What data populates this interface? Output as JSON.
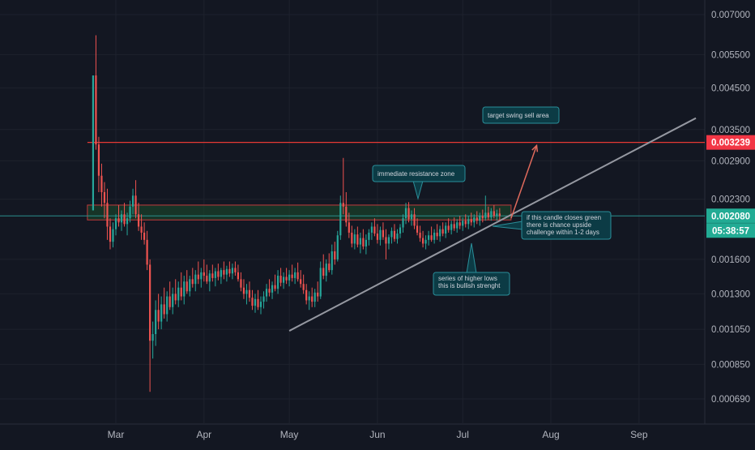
{
  "colors": {
    "background": "#131722",
    "grid": "#1e222d",
    "axis_text": "#b2b5be",
    "candle_up": "#26a69a",
    "candle_down": "#ef5350",
    "resistance_line": "#e53935",
    "resistance_tag_bg": "#f23645",
    "price_line": "#2a8f8c",
    "price_tag_bg": "#22ab94",
    "trendline": "#9598a1",
    "arrow": "#e06a5c",
    "callout_bg": "#0c3b45",
    "callout_border": "#2a8f9a",
    "zone_fill": "#1b4d2b",
    "zone_border": "#c23b3b"
  },
  "chart_data": {
    "type": "candlestick",
    "title": "",
    "y_scale": "log",
    "ylim": [
      0.00062,
      0.0076
    ],
    "y_ticks": [
      "0.007000",
      "0.005500",
      "0.004500",
      "0.003500",
      "0.002900",
      "0.002300",
      "0.001600",
      "0.001300",
      "0.001050",
      "0.000850",
      "0.000690"
    ],
    "x_ticks": [
      "Mar",
      "Apr",
      "May",
      "Jun",
      "Jul",
      "Aug",
      "Sep"
    ],
    "current_price": "0.002080",
    "countdown": "05:38:57",
    "resistance_level": "0.003239",
    "resistance_zone": [
      0.00203,
      0.00222
    ],
    "annotations": [
      {
        "id": "target",
        "lines": [
          "target swing sell area"
        ]
      },
      {
        "id": "resistance",
        "lines": [
          "immediate resistance zone"
        ]
      },
      {
        "id": "candle",
        "lines": [
          "if this candle closes green",
          "there is chance upside",
          "challenge within 1-2 days"
        ]
      },
      {
        "id": "lows",
        "lines": [
          "series of higher lows",
          "this is bullish strenght"
        ]
      }
    ],
    "trendline": {
      "from": [
        "2021-05-01",
        0.00104
      ],
      "to": [
        "2021-09-21",
        0.00375
      ]
    },
    "target_arrow": {
      "from": [
        "2021-07-18",
        0.00205
      ],
      "to": [
        "2021-07-27",
        0.00318
      ]
    },
    "candles": [
      [
        "2021-02-21",
        0.00215,
        0.00485,
        0.00215,
        0.00485
      ],
      [
        "2021-02-22",
        0.00485,
        0.00618,
        0.0031,
        0.0032
      ],
      [
        "2021-02-23",
        0.0032,
        0.00335,
        0.0024,
        0.00265
      ],
      [
        "2021-02-24",
        0.00265,
        0.00285,
        0.0022,
        0.0024
      ],
      [
        "2021-02-25",
        0.0024,
        0.00255,
        0.00205,
        0.00225
      ],
      [
        "2021-02-26",
        0.00225,
        0.00245,
        0.0018,
        0.00195
      ],
      [
        "2021-02-27",
        0.00195,
        0.00205,
        0.0017,
        0.00178
      ],
      [
        "2021-02-28",
        0.00178,
        0.002,
        0.00172,
        0.00192
      ],
      [
        "2021-03-01",
        0.00192,
        0.0021,
        0.00185,
        0.00205
      ],
      [
        "2021-03-02",
        0.00205,
        0.00222,
        0.00195,
        0.002
      ],
      [
        "2021-03-03",
        0.002,
        0.00215,
        0.0019,
        0.0021
      ],
      [
        "2021-03-04",
        0.0021,
        0.00225,
        0.00195,
        0.00198
      ],
      [
        "2021-03-05",
        0.00198,
        0.00212,
        0.00185,
        0.00205
      ],
      [
        "2021-03-06",
        0.00205,
        0.00228,
        0.002,
        0.0022
      ],
      [
        "2021-03-07",
        0.0022,
        0.00245,
        0.0021,
        0.00235
      ],
      [
        "2021-03-08",
        0.00235,
        0.00258,
        0.00205,
        0.0021
      ],
      [
        "2021-03-09",
        0.0021,
        0.00225,
        0.0019,
        0.00195
      ],
      [
        "2021-03-10",
        0.00195,
        0.0021,
        0.0018,
        0.00188
      ],
      [
        "2021-03-11",
        0.00188,
        0.002,
        0.00175,
        0.0018
      ],
      [
        "2021-03-12",
        0.0018,
        0.0019,
        0.0015,
        0.00155
      ],
      [
        "2021-03-13",
        0.00155,
        0.0016,
        0.00072,
        0.00098
      ],
      [
        "2021-03-14",
        0.00098,
        0.0011,
        0.00088,
        0.00102
      ],
      [
        "2021-03-15",
        0.00102,
        0.00125,
        0.00095,
        0.00118
      ],
      [
        "2021-03-16",
        0.00118,
        0.0013,
        0.00105,
        0.0011
      ],
      [
        "2021-03-17",
        0.0011,
        0.00128,
        0.00105,
        0.00122
      ],
      [
        "2021-03-18",
        0.00122,
        0.00135,
        0.00112,
        0.00115
      ],
      [
        "2021-03-19",
        0.00115,
        0.00132,
        0.0011,
        0.00128
      ],
      [
        "2021-03-20",
        0.00128,
        0.0014,
        0.00118,
        0.0012
      ],
      [
        "2021-03-21",
        0.0012,
        0.00135,
        0.00115,
        0.0013
      ],
      [
        "2021-03-22",
        0.0013,
        0.00142,
        0.00122,
        0.00125
      ],
      [
        "2021-03-23",
        0.00125,
        0.0014,
        0.0012,
        0.00135
      ],
      [
        "2021-03-24",
        0.00135,
        0.00148,
        0.00125,
        0.00128
      ],
      [
        "2021-03-25",
        0.00128,
        0.00145,
        0.00122,
        0.0014
      ],
      [
        "2021-03-26",
        0.0014,
        0.0015,
        0.0013,
        0.00132
      ],
      [
        "2021-03-27",
        0.00132,
        0.00145,
        0.00128,
        0.00142
      ],
      [
        "2021-03-28",
        0.00142,
        0.00152,
        0.00135,
        0.00138
      ],
      [
        "2021-03-29",
        0.00138,
        0.0015,
        0.00132,
        0.00146
      ],
      [
        "2021-03-30",
        0.00146,
        0.00158,
        0.00138,
        0.00142
      ],
      [
        "2021-03-31",
        0.00142,
        0.00152,
        0.00135,
        0.00148
      ],
      [
        "2021-04-01",
        0.00148,
        0.0016,
        0.0014,
        0.00145
      ],
      [
        "2021-04-02",
        0.00145,
        0.00155,
        0.00138,
        0.0014
      ],
      [
        "2021-04-03",
        0.0014,
        0.0015,
        0.00132,
        0.00147
      ],
      [
        "2021-04-04",
        0.00147,
        0.00155,
        0.0014,
        0.00143
      ],
      [
        "2021-04-05",
        0.00143,
        0.00152,
        0.00136,
        0.00149
      ],
      [
        "2021-04-06",
        0.00149,
        0.00156,
        0.00141,
        0.00144
      ],
      [
        "2021-04-07",
        0.00144,
        0.00152,
        0.00138,
        0.0015
      ],
      [
        "2021-04-08",
        0.0015,
        0.00158,
        0.00142,
        0.00146
      ],
      [
        "2021-04-09",
        0.00146,
        0.00154,
        0.0014,
        0.00151
      ],
      [
        "2021-04-10",
        0.00151,
        0.00158,
        0.00144,
        0.00147
      ],
      [
        "2021-04-11",
        0.00147,
        0.00156,
        0.00142,
        0.00152
      ],
      [
        "2021-04-12",
        0.00152,
        0.00158,
        0.00145,
        0.00148
      ],
      [
        "2021-04-13",
        0.00148,
        0.00155,
        0.0014,
        0.00142
      ],
      [
        "2021-04-14",
        0.00142,
        0.00148,
        0.00132,
        0.00135
      ],
      [
        "2021-04-15",
        0.00135,
        0.00142,
        0.00126,
        0.0013
      ],
      [
        "2021-04-16",
        0.0013,
        0.00138,
        0.00122,
        0.00133
      ],
      [
        "2021-04-17",
        0.00133,
        0.0014,
        0.00124,
        0.00127
      ],
      [
        "2021-04-18",
        0.00127,
        0.00133,
        0.00118,
        0.00121
      ],
      [
        "2021-04-19",
        0.00121,
        0.0013,
        0.00116,
        0.00126
      ],
      [
        "2021-04-20",
        0.00126,
        0.00133,
        0.00118,
        0.0012
      ],
      [
        "2021-04-21",
        0.0012,
        0.00128,
        0.00115,
        0.00124
      ],
      [
        "2021-04-22",
        0.00124,
        0.00132,
        0.00119,
        0.00128
      ],
      [
        "2021-04-23",
        0.00128,
        0.00138,
        0.00124,
        0.00134
      ],
      [
        "2021-04-24",
        0.00134,
        0.00142,
        0.00128,
        0.00131
      ],
      [
        "2021-04-25",
        0.00131,
        0.0014,
        0.00126,
        0.00137
      ],
      [
        "2021-04-26",
        0.00137,
        0.00146,
        0.00132,
        0.00134
      ],
      [
        "2021-04-27",
        0.00134,
        0.0015,
        0.0013,
        0.00145
      ],
      [
        "2021-04-28",
        0.00145,
        0.00152,
        0.00136,
        0.00139
      ],
      [
        "2021-04-29",
        0.00139,
        0.00148,
        0.00134,
        0.00144
      ],
      [
        "2021-04-30",
        0.00144,
        0.00152,
        0.00138,
        0.00141
      ],
      [
        "2021-05-01",
        0.00141,
        0.0015,
        0.00136,
        0.00146
      ],
      [
        "2021-05-02",
        0.00146,
        0.00155,
        0.0014,
        0.00143
      ],
      [
        "2021-05-03",
        0.00143,
        0.00152,
        0.00138,
        0.00148
      ],
      [
        "2021-05-04",
        0.00148,
        0.00157,
        0.0014,
        0.00142
      ],
      [
        "2021-05-05",
        0.00142,
        0.0015,
        0.00135,
        0.00138
      ],
      [
        "2021-05-06",
        0.00138,
        0.00146,
        0.0013,
        0.00133
      ],
      [
        "2021-05-07",
        0.00133,
        0.00138,
        0.00122,
        0.00125
      ],
      [
        "2021-05-08",
        0.00125,
        0.00132,
        0.00118,
        0.00128
      ],
      [
        "2021-05-09",
        0.00128,
        0.00135,
        0.0012,
        0.00124
      ],
      [
        "2021-05-10",
        0.00124,
        0.00134,
        0.0012,
        0.00131
      ],
      [
        "2021-05-11",
        0.00131,
        0.0014,
        0.00124,
        0.00128
      ],
      [
        "2021-05-12",
        0.00128,
        0.00158,
        0.00126,
        0.00152
      ],
      [
        "2021-05-13",
        0.00152,
        0.00165,
        0.00142,
        0.00145
      ],
      [
        "2021-05-14",
        0.00145,
        0.0016,
        0.0014,
        0.00156
      ],
      [
        "2021-05-15",
        0.00156,
        0.00166,
        0.00148,
        0.0015
      ],
      [
        "2021-05-16",
        0.0015,
        0.00175,
        0.00146,
        0.00168
      ],
      [
        "2021-05-17",
        0.00168,
        0.00178,
        0.00155,
        0.0016
      ],
      [
        "2021-05-18",
        0.0016,
        0.0019,
        0.00158,
        0.00185
      ],
      [
        "2021-05-19",
        0.00185,
        0.00235,
        0.0018,
        0.00225
      ],
      [
        "2021-05-20",
        0.00225,
        0.00295,
        0.0021,
        0.0022
      ],
      [
        "2021-05-21",
        0.0022,
        0.0024,
        0.00195,
        0.002
      ],
      [
        "2021-05-22",
        0.002,
        0.00212,
        0.00182,
        0.00188
      ],
      [
        "2021-05-23",
        0.00188,
        0.00196,
        0.00172,
        0.00176
      ],
      [
        "2021-05-24",
        0.00176,
        0.00192,
        0.0017,
        0.00186
      ],
      [
        "2021-05-25",
        0.00186,
        0.00195,
        0.00172,
        0.00175
      ],
      [
        "2021-05-26",
        0.00175,
        0.00188,
        0.00166,
        0.00182
      ],
      [
        "2021-05-27",
        0.00182,
        0.00192,
        0.0017,
        0.00173
      ],
      [
        "2021-05-28",
        0.00173,
        0.00186,
        0.00165,
        0.0018
      ],
      [
        "2021-05-29",
        0.0018,
        0.00192,
        0.00174,
        0.00188
      ],
      [
        "2021-05-30",
        0.00188,
        0.002,
        0.0018,
        0.00195
      ],
      [
        "2021-05-31",
        0.00195,
        0.00205,
        0.00184,
        0.00187
      ],
      [
        "2021-06-01",
        0.00187,
        0.00198,
        0.00176,
        0.0018
      ],
      [
        "2021-06-02",
        0.0018,
        0.00195,
        0.00174,
        0.00191
      ],
      [
        "2021-06-03",
        0.00191,
        0.002,
        0.0018,
        0.00183
      ],
      [
        "2021-06-04",
        0.00183,
        0.00192,
        0.0016,
        0.00176
      ],
      [
        "2021-06-05",
        0.00176,
        0.00186,
        0.0017,
        0.00183
      ],
      [
        "2021-06-06",
        0.00183,
        0.00194,
        0.00176,
        0.0019
      ],
      [
        "2021-06-07",
        0.0019,
        0.00198,
        0.00178,
        0.00181
      ],
      [
        "2021-06-08",
        0.00181,
        0.00192,
        0.00176,
        0.00187
      ],
      [
        "2021-06-09",
        0.00187,
        0.00198,
        0.00182,
        0.00194
      ],
      [
        "2021-06-10",
        0.00194,
        0.0021,
        0.00188,
        0.00205
      ],
      [
        "2021-06-11",
        0.00205,
        0.00225,
        0.00198,
        0.00218
      ],
      [
        "2021-06-12",
        0.00218,
        0.00226,
        0.002,
        0.00204
      ],
      [
        "2021-06-13",
        0.00204,
        0.00215,
        0.00196,
        0.0021
      ],
      [
        "2021-06-14",
        0.0021,
        0.00218,
        0.00192,
        0.00196
      ],
      [
        "2021-06-15",
        0.00196,
        0.00205,
        0.00185,
        0.00188
      ],
      [
        "2021-06-16",
        0.00188,
        0.00196,
        0.00178,
        0.00182
      ],
      [
        "2021-06-17",
        0.00182,
        0.0019,
        0.00172,
        0.00176
      ],
      [
        "2021-06-18",
        0.00176,
        0.00185,
        0.0017,
        0.0018
      ],
      [
        "2021-06-19",
        0.0018,
        0.0019,
        0.00174,
        0.00185
      ],
      [
        "2021-06-20",
        0.00185,
        0.00195,
        0.00178,
        0.0018
      ],
      [
        "2021-06-21",
        0.0018,
        0.00192,
        0.00176,
        0.00188
      ],
      [
        "2021-06-22",
        0.00188,
        0.00198,
        0.0018,
        0.00184
      ],
      [
        "2021-06-23",
        0.00184,
        0.00196,
        0.00178,
        0.00192
      ],
      [
        "2021-06-24",
        0.00192,
        0.002,
        0.00184,
        0.00187
      ],
      [
        "2021-06-25",
        0.00187,
        0.002,
        0.00182,
        0.00196
      ],
      [
        "2021-06-26",
        0.00196,
        0.00205,
        0.00188,
        0.00191
      ],
      [
        "2021-06-27",
        0.00191,
        0.00202,
        0.00186,
        0.00198
      ],
      [
        "2021-06-28",
        0.00198,
        0.00206,
        0.0019,
        0.00193
      ],
      [
        "2021-06-29",
        0.00193,
        0.00204,
        0.00188,
        0.002
      ],
      [
        "2021-06-30",
        0.002,
        0.00208,
        0.00192,
        0.00196
      ],
      [
        "2021-07-01",
        0.00196,
        0.00206,
        0.0019,
        0.00202
      ],
      [
        "2021-07-02",
        0.00202,
        0.0021,
        0.00194,
        0.00198
      ],
      [
        "2021-07-03",
        0.00198,
        0.00208,
        0.00192,
        0.00204
      ],
      [
        "2021-07-04",
        0.00204,
        0.00212,
        0.00196,
        0.002
      ],
      [
        "2021-07-05",
        0.002,
        0.0021,
        0.00194,
        0.00206
      ],
      [
        "2021-07-06",
        0.00206,
        0.00214,
        0.00198,
        0.00202
      ],
      [
        "2021-07-07",
        0.00202,
        0.00212,
        0.00196,
        0.00208
      ],
      [
        "2021-07-08",
        0.00208,
        0.00216,
        0.002,
        0.00205
      ],
      [
        "2021-07-09",
        0.00205,
        0.00235,
        0.00202,
        0.00212
      ],
      [
        "2021-07-10",
        0.00212,
        0.0022,
        0.00203,
        0.00206
      ],
      [
        "2021-07-11",
        0.00206,
        0.00218,
        0.00202,
        0.00214
      ],
      [
        "2021-07-12",
        0.00214,
        0.00222,
        0.00205,
        0.00208
      ],
      [
        "2021-07-13",
        0.00208,
        0.00216,
        0.00202,
        0.00211
      ],
      [
        "2021-07-14",
        0.00211,
        0.00218,
        0.00203,
        0.00208
      ]
    ]
  }
}
